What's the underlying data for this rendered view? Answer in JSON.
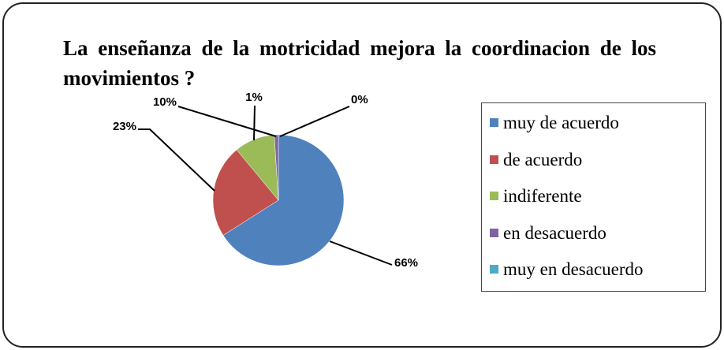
{
  "chart_data": {
    "type": "pie",
    "title": "La enseñanza de la motricidad  mejora la coordinacion de los movimientos ?",
    "categories": [
      "muy de acuerdo",
      "de acuerdo",
      "indiferente",
      "en desacuerdo",
      "muy en desacuerdo"
    ],
    "values": [
      66,
      23,
      10,
      1,
      0
    ],
    "value_labels": [
      "66%",
      "23%",
      "10%",
      "1%",
      "0%"
    ],
    "colors": [
      "#4f81bd",
      "#c0504d",
      "#9bbb59",
      "#8064a2",
      "#4bacc6"
    ],
    "legend": "right"
  }
}
